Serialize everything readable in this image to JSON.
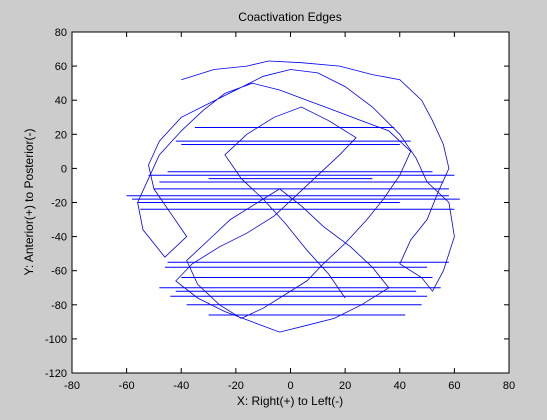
{
  "chart_data": {
    "type": "line",
    "title": "Coactivation Edges",
    "xlabel": "X: Right(+) to Left(-)",
    "ylabel": "Y: Anterior(+) to Posterior(-)",
    "xlim": [
      -80,
      80
    ],
    "ylim": [
      -120,
      80
    ],
    "xticks": [
      -80,
      -60,
      -40,
      -20,
      0,
      20,
      40,
      60,
      80
    ],
    "yticks": [
      -120,
      -100,
      -80,
      -60,
      -40,
      -20,
      0,
      20,
      40,
      60,
      80
    ],
    "grid": false,
    "legend": "none",
    "line_color": "#0000ff",
    "background_color": "#cccccc",
    "axes_color": "#ffffff",
    "horizontal_edges": [
      {
        "x": [
          -52,
          60
        ],
        "y": [
          -4,
          -4
        ]
      },
      {
        "x": [
          -60,
          58
        ],
        "y": [
          -16,
          -16
        ]
      },
      {
        "x": [
          -58,
          62
        ],
        "y": [
          -18,
          -18
        ]
      },
      {
        "x": [
          -55,
          60
        ],
        "y": [
          -24,
          -24
        ]
      },
      {
        "x": [
          -48,
          56
        ],
        "y": [
          -8,
          -8
        ]
      },
      {
        "x": [
          -45,
          52
        ],
        "y": [
          -2,
          -2
        ]
      },
      {
        "x": [
          -50,
          58
        ],
        "y": [
          -12,
          -12
        ]
      },
      {
        "x": [
          -40,
          40
        ],
        "y": [
          14,
          14
        ]
      },
      {
        "x": [
          -35,
          38
        ],
        "y": [
          24,
          24
        ]
      },
      {
        "x": [
          -42,
          44
        ],
        "y": [
          16,
          16
        ]
      },
      {
        "x": [
          -45,
          58
        ],
        "y": [
          -55,
          -55
        ]
      },
      {
        "x": [
          -40,
          52
        ],
        "y": [
          -64,
          -64
        ]
      },
      {
        "x": [
          -48,
          55
        ],
        "y": [
          -70,
          -70
        ]
      },
      {
        "x": [
          -44,
          50
        ],
        "y": [
          -75,
          -75
        ]
      },
      {
        "x": [
          -38,
          48
        ],
        "y": [
          -80,
          -80
        ]
      },
      {
        "x": [
          -30,
          42
        ],
        "y": [
          -86,
          -86
        ]
      },
      {
        "x": [
          -46,
          50
        ],
        "y": [
          -58,
          -58
        ]
      },
      {
        "x": [
          -42,
          46
        ],
        "y": [
          -72,
          -72
        ]
      },
      {
        "x": [
          -30,
          30
        ],
        "y": [
          -6,
          -6
        ]
      },
      {
        "x": [
          -56,
          40
        ],
        "y": [
          -20,
          -20
        ]
      }
    ],
    "edge_path": {
      "x": [
        -40,
        -28,
        -16,
        -8,
        4,
        18,
        30,
        40,
        48,
        52,
        56,
        58,
        54,
        50,
        44,
        40,
        48,
        52,
        56,
        60,
        58,
        50,
        46,
        40,
        30,
        20,
        10,
        0,
        -10,
        -20,
        -30,
        -40,
        -48,
        -52,
        -50,
        -44,
        -38,
        -46,
        -54,
        -56,
        -52,
        -48,
        -40,
        -32,
        -24,
        -14,
        -4,
        6,
        16,
        26,
        36,
        44,
        40,
        34,
        28,
        20,
        12,
        6,
        -2,
        -10,
        -18,
        -26,
        -34,
        -38,
        -30,
        -22,
        -12,
        -4,
        4,
        12,
        22,
        30,
        36,
        26,
        16,
        6,
        -4,
        -14,
        -24,
        -34,
        -42,
        -36,
        -26,
        -16,
        -6,
        2,
        10,
        18,
        24,
        14,
        4,
        -6,
        -16,
        -24,
        -18,
        -10,
        -2,
        6,
        14,
        20
      ],
      "y": [
        52,
        58,
        60,
        63,
        62,
        60,
        55,
        52,
        40,
        28,
        14,
        0,
        -14,
        -30,
        -42,
        -56,
        -64,
        -72,
        -60,
        -40,
        -20,
        -8,
        6,
        20,
        36,
        48,
        56,
        58,
        54,
        46,
        38,
        30,
        16,
        2,
        -12,
        -26,
        -40,
        -52,
        -36,
        -20,
        -6,
        8,
        22,
        34,
        44,
        50,
        46,
        40,
        34,
        28,
        22,
        10,
        -4,
        -18,
        -30,
        -44,
        -56,
        -66,
        -74,
        -82,
        -88,
        -80,
        -68,
        -54,
        -42,
        -30,
        -20,
        -12,
        -22,
        -34,
        -46,
        -58,
        -70,
        -80,
        -88,
        -92,
        -96,
        -90,
        -84,
        -76,
        -66,
        -56,
        -46,
        -38,
        -28,
        -16,
        -4,
        8,
        18,
        28,
        36,
        30,
        20,
        8,
        -6,
        -18,
        -32,
        -48,
        -62,
        -76
      ]
    }
  }
}
